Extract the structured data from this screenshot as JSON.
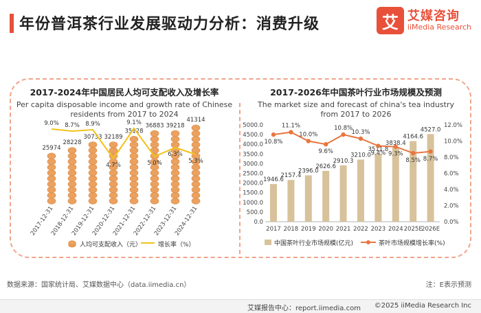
{
  "header": {
    "title": "年份普洱茶行业发展驱动力分析：消费升级",
    "logo_mark": "艾",
    "logo_cn": "艾媒咨询",
    "logo_en": "iiMedia Research"
  },
  "colors": {
    "accent": "#e8503a",
    "coin": "#eba15f",
    "line_left": "#f2c21a",
    "bar_right": "#d8c29b",
    "line_right": "#e8763f",
    "frame": "#f0a48a"
  },
  "chart_data": [
    {
      "type": "bar+line",
      "title": "2017-2024年中国居民人均可支配收入及增长率",
      "subtitle": "Per capita disposable income and growth rate of Chinese residents from 2017 to 2024",
      "categories": [
        "2017-12-31",
        "2018-12-31",
        "2019-12-31",
        "2020-12-31",
        "2021-12-31",
        "2022-12-31",
        "2023-12-31",
        "2024-12-31"
      ],
      "series": [
        {
          "name": "人均可支配收入（元）",
          "kind": "bar",
          "values": [
            25974,
            28228,
            30733,
            32189,
            35128,
            36883,
            39218,
            41314
          ],
          "labels": [
            "25974",
            "28228",
            "30733",
            "32189",
            "35128",
            "36883",
            "39218",
            "41314"
          ]
        },
        {
          "name": "增长率（%）",
          "kind": "line",
          "values": [
            9.0,
            8.7,
            8.9,
            4.7,
            9.1,
            5.0,
            6.3,
            5.3
          ],
          "labels": [
            "9.0%",
            "8.7%",
            "8.9%",
            "4.7%",
            "9.1%",
            "5.0%",
            "6.3%",
            "5.3%"
          ]
        }
      ],
      "legend": [
        "人均可支配收入（元）",
        "增长率（%）"
      ],
      "legend_position": "bottom"
    },
    {
      "type": "bar+line",
      "title": "2017-2026年中国茶叶行业市场规模及预测",
      "subtitle": "The market size and forecast of china's tea industry from 2017 to 2026",
      "categories": [
        "2017",
        "2018",
        "2019",
        "2020",
        "2021",
        "2022",
        "2023",
        "2024",
        "2025E",
        "2026E"
      ],
      "y_left_ticks": [
        "0.0",
        "500.0",
        "1000.0",
        "1500.0",
        "2000.0",
        "2500.0",
        "3000.0",
        "3500.0",
        "4000.0",
        "4500.0",
        "5000.0"
      ],
      "y_left_range": [
        0,
        5000
      ],
      "y_right_ticks": [
        "0.0%",
        "2.0%",
        "4.0%",
        "6.0%",
        "8.0%",
        "10.0%",
        "12.0%"
      ],
      "y_right_range": [
        0,
        12
      ],
      "series": [
        {
          "name": "中国茶叶行业市场规模(亿元)",
          "kind": "bar",
          "values": [
            1946.6,
            2157.4,
            2396.0,
            2626.6,
            2910.3,
            3210.0,
            3511.8,
            3838.4,
            4164.6,
            4527.0
          ],
          "labels": [
            "1946.6",
            "2157.4",
            "2396.0",
            "2626.6",
            "2910.3",
            "3210.0",
            "3511.8",
            "3838.4",
            "4164.6",
            "4527.0"
          ]
        },
        {
          "name": "茶叶市场规模增长率(%)",
          "kind": "line",
          "values": [
            10.8,
            11.1,
            10.0,
            9.6,
            10.8,
            10.3,
            9.4,
            9.3,
            8.5,
            8.7
          ],
          "labels": [
            "10.8%",
            "11.1%",
            "10.0%",
            "9.6%",
            "10.8%",
            "10.3%",
            "9.4%",
            "9.3%",
            "8.5%",
            "8.7%"
          ]
        }
      ],
      "legend": [
        "中国茶叶行业市场规模(亿元)",
        "茶叶市场规模增长率(%)"
      ],
      "legend_position": "bottom"
    }
  ],
  "footer": {
    "source": "数据来源：国家统计局、艾媒数据中心（data.iimedia.cn）",
    "note": "注：E表示预测",
    "report_center": "艾媒报告中心：report.iimedia.com",
    "copyright": "©2025  iiMedia Research  Inc"
  }
}
